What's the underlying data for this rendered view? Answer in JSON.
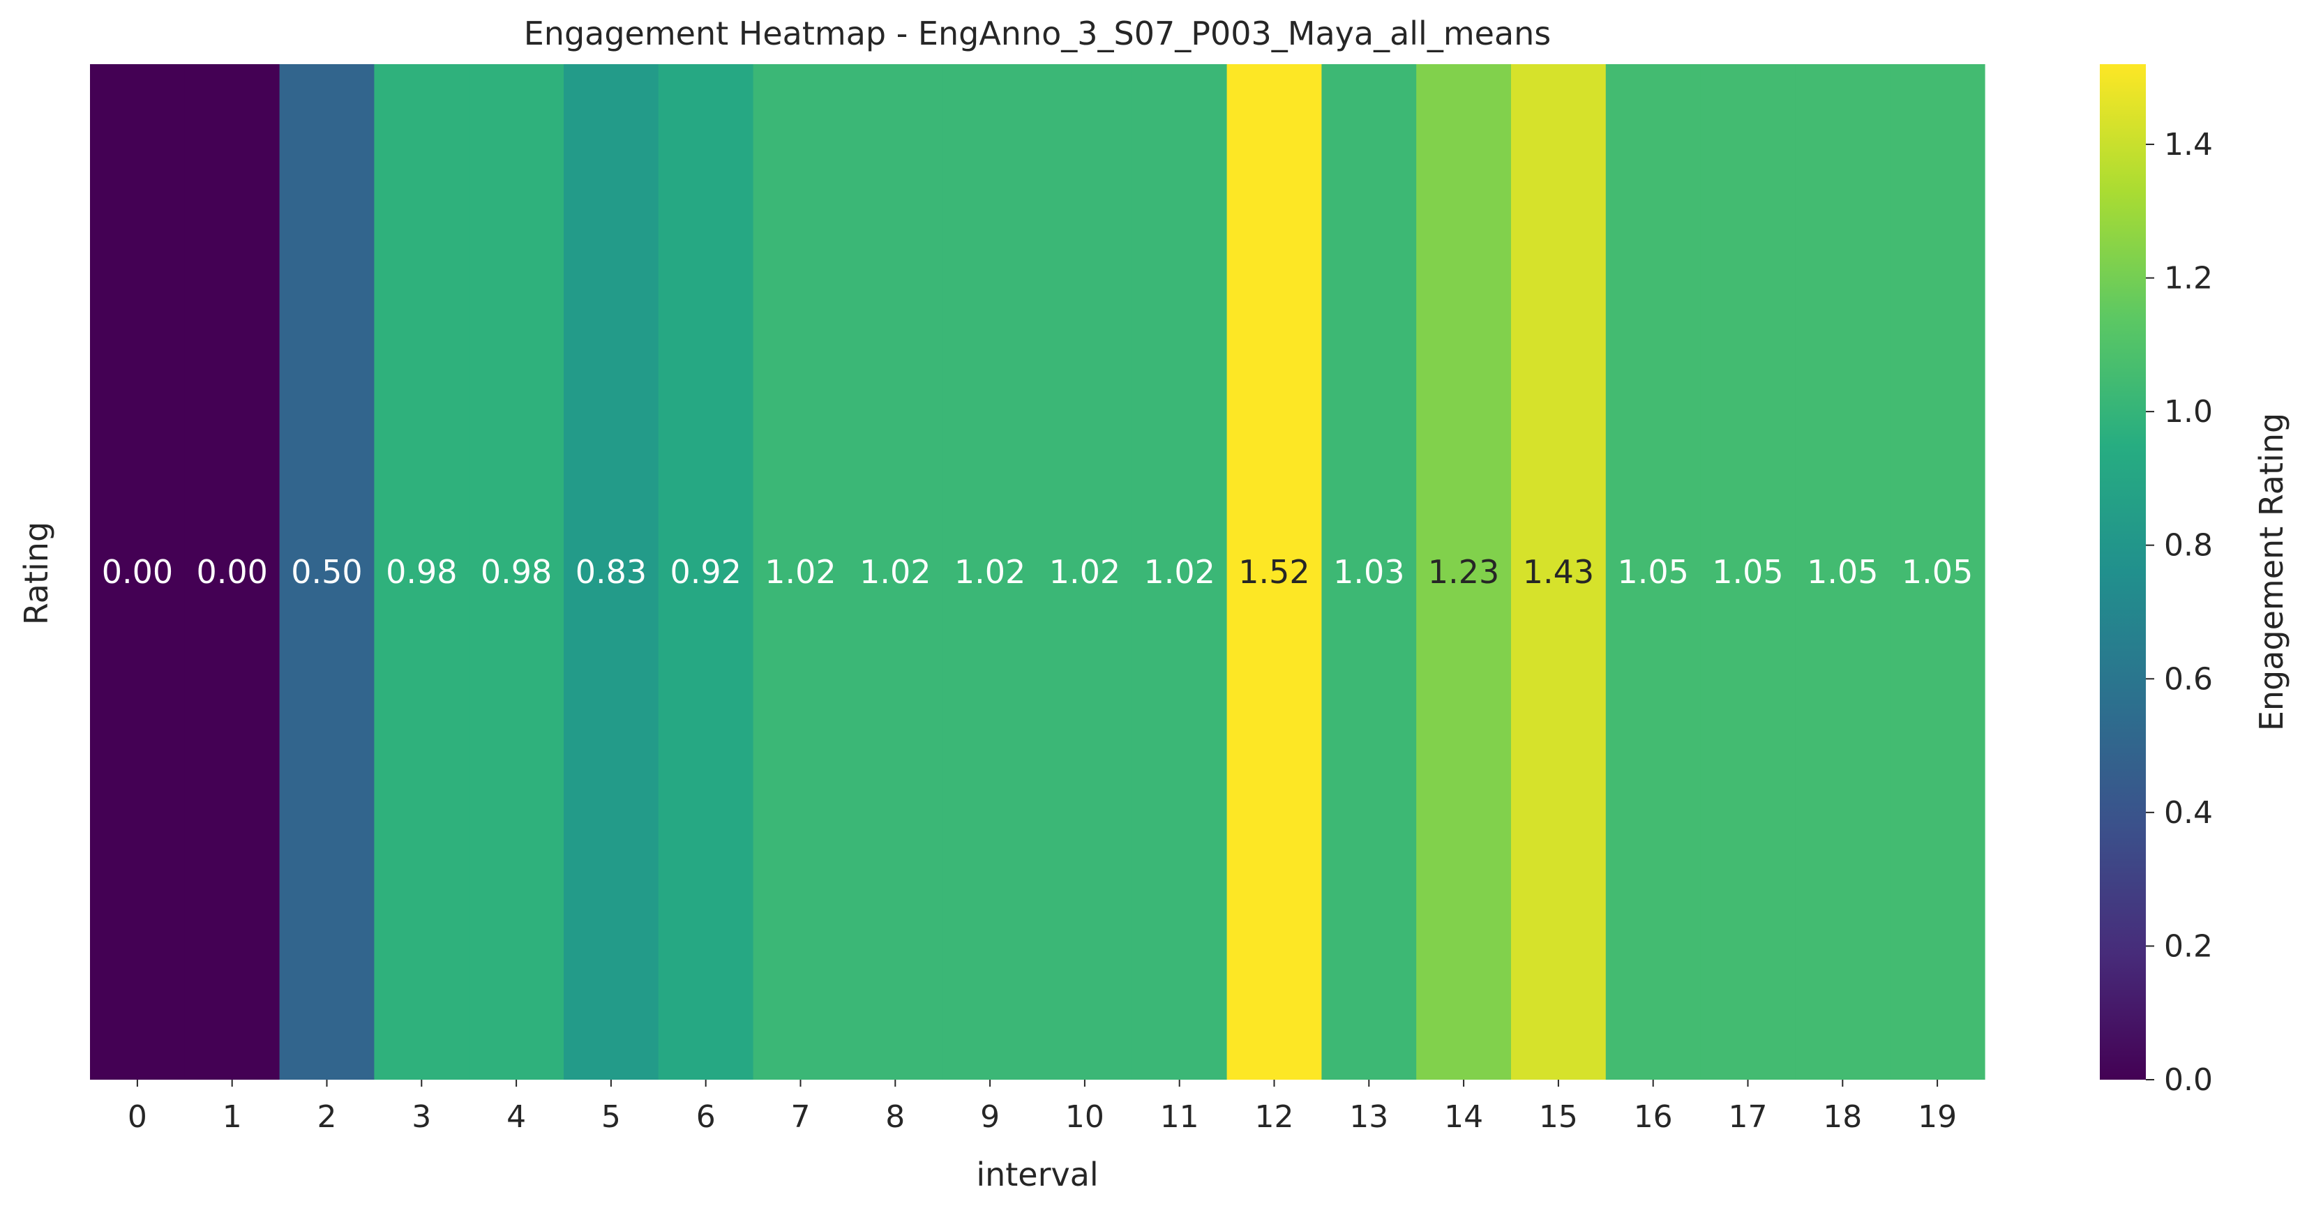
{
  "chart_data": {
    "type": "heatmap",
    "title": "Engagement Heatmap -  EngAnno_3_S07_P003_Maya_all_means",
    "xlabel": "interval",
    "ylabel": "Rating",
    "x": [
      "0",
      "1",
      "2",
      "3",
      "4",
      "5",
      "6",
      "7",
      "8",
      "9",
      "10",
      "11",
      "12",
      "13",
      "14",
      "15",
      "16",
      "17",
      "18",
      "19"
    ],
    "values": [
      0.0,
      0.0,
      0.5,
      0.98,
      0.98,
      0.83,
      0.92,
      1.02,
      1.02,
      1.02,
      1.02,
      1.02,
      1.52,
      1.03,
      1.23,
      1.43,
      1.05,
      1.05,
      1.05,
      1.05
    ],
    "value_labels": [
      "0.00",
      "0.00",
      "0.50",
      "0.98",
      "0.98",
      "0.83",
      "0.92",
      "1.02",
      "1.02",
      "1.02",
      "1.02",
      "1.02",
      "1.52",
      "1.03",
      "1.23",
      "1.43",
      "1.05",
      "1.05",
      "1.05",
      "1.05"
    ],
    "colormap": "viridis",
    "vmin": 0.0,
    "vmax": 1.52,
    "colorbar": {
      "label": "Engagement Rating",
      "ticks": [
        0.0,
        0.2,
        0.4,
        0.6,
        0.8,
        1.0,
        1.2,
        1.4
      ],
      "tick_labels": [
        "0.0",
        "0.2",
        "0.4",
        "0.6",
        "0.8",
        "1.0",
        "1.2",
        "1.4"
      ]
    },
    "grid": false,
    "legend": "colorbar-right"
  }
}
